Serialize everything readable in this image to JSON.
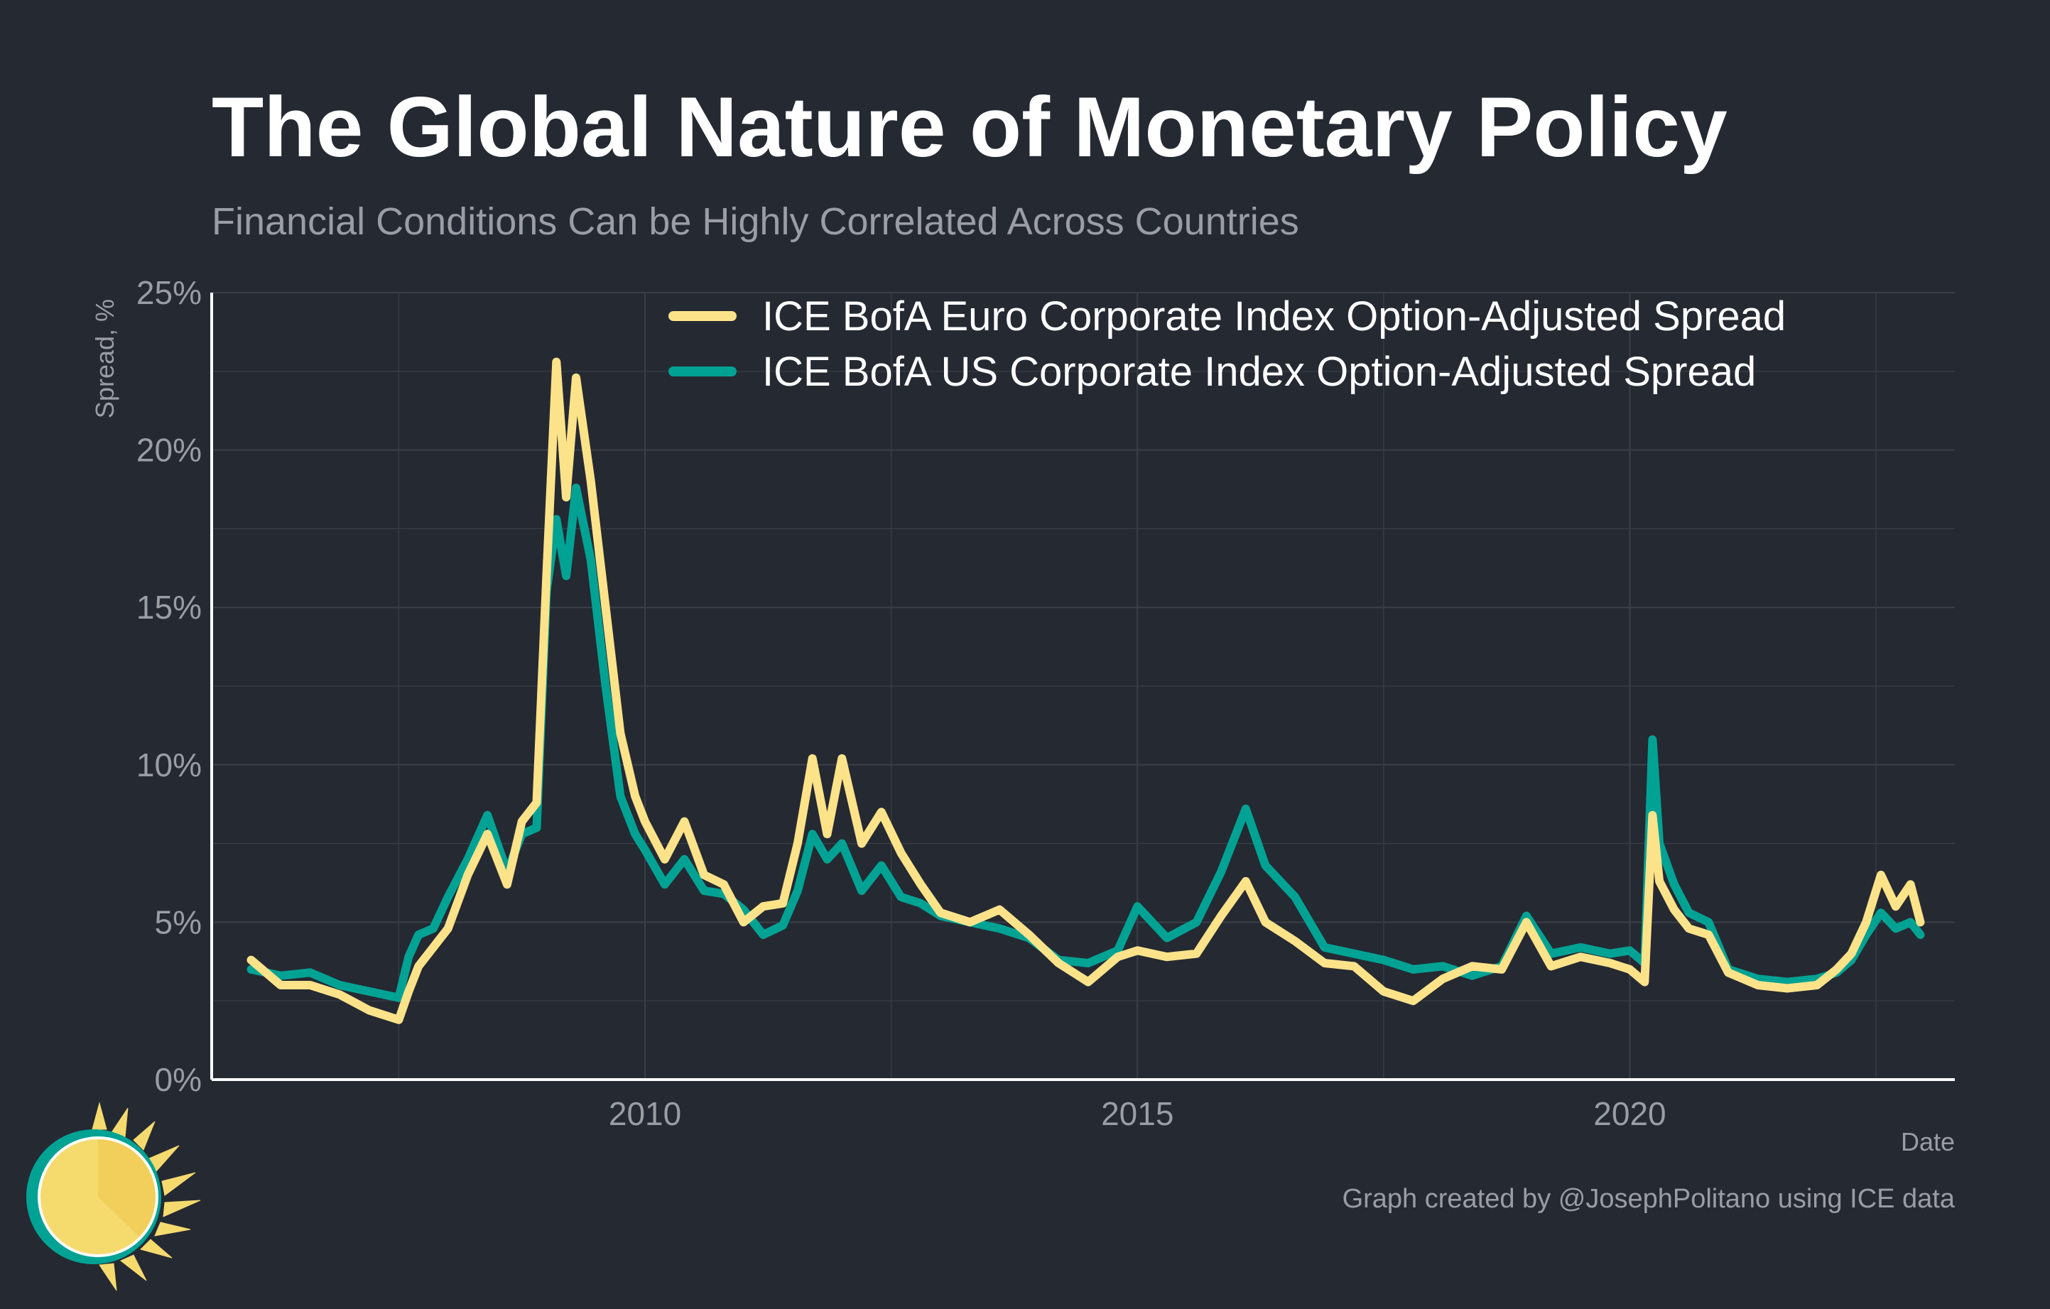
{
  "title": "The Global Nature of Monetary Policy",
  "subtitle": "Financial Conditions Can be Highly Correlated Across Countries",
  "caption": "Graph created by @JosephPolitano using ICE data",
  "logo_icon": "sun-logo-icon",
  "colors": {
    "background": "#252932",
    "grid": "#3b3f48",
    "axis": "#ffffff",
    "euro": "#fce38a",
    "us": "#00a294",
    "sun": "#f5da6e",
    "sun_ring": "#00a294"
  },
  "chart_data": {
    "type": "line",
    "title": "The Global Nature of Monetary Policy",
    "subtitle": "Financial Conditions Can be Highly Correlated Across Countries",
    "xlabel": "Date",
    "ylabel": "Spread, %",
    "xlim": [
      2005.6,
      2023.3
    ],
    "ylim": [
      0,
      25
    ],
    "x_ticks": [
      2010,
      2015,
      2020
    ],
    "x_tick_labels": [
      "2010",
      "2015",
      "2020"
    ],
    "y_ticks": [
      0,
      5,
      10,
      15,
      20,
      25
    ],
    "y_tick_labels": [
      "0%",
      "5%",
      "10%",
      "15%",
      "20%",
      "25%"
    ],
    "grid": true,
    "legend_position": "top-right",
    "series": [
      {
        "name": "ICE BofA Euro Corporate Index Option-Adjusted Spread",
        "color": "#fce38a",
        "x": [
          2006.0,
          2006.3,
          2006.6,
          2006.9,
          2007.2,
          2007.5,
          2007.6,
          2007.7,
          2007.85,
          2008.0,
          2008.2,
          2008.4,
          2008.6,
          2008.75,
          2008.9,
          2009.0,
          2009.1,
          2009.2,
          2009.3,
          2009.45,
          2009.6,
          2009.75,
          2009.9,
          2010.0,
          2010.2,
          2010.4,
          2010.6,
          2010.8,
          2011.0,
          2011.2,
          2011.4,
          2011.55,
          2011.7,
          2011.85,
          2012.0,
          2012.2,
          2012.4,
          2012.6,
          2012.8,
          2013.0,
          2013.3,
          2013.6,
          2013.9,
          2014.2,
          2014.5,
          2014.8,
          2015.0,
          2015.3,
          2015.6,
          2015.85,
          2016.1,
          2016.3,
          2016.6,
          2016.9,
          2017.2,
          2017.5,
          2017.8,
          2018.1,
          2018.4,
          2018.7,
          2018.95,
          2019.2,
          2019.5,
          2019.8,
          2020.0,
          2020.15,
          2020.23,
          2020.3,
          2020.45,
          2020.6,
          2020.8,
          2021.0,
          2021.3,
          2021.6,
          2021.9,
          2022.1,
          2022.25,
          2022.4,
          2022.55,
          2022.7,
          2022.85,
          2022.95
        ],
        "values": [
          3.8,
          3.0,
          3.0,
          2.7,
          2.2,
          1.9,
          2.8,
          3.6,
          4.2,
          4.8,
          6.5,
          7.8,
          6.2,
          8.2,
          8.8,
          16.0,
          22.8,
          18.5,
          22.3,
          19.0,
          15.0,
          11.0,
          9.0,
          8.2,
          7.0,
          8.2,
          6.5,
          6.2,
          5.0,
          5.5,
          5.6,
          7.5,
          10.2,
          7.8,
          10.2,
          7.5,
          8.5,
          7.2,
          6.2,
          5.3,
          5.0,
          5.4,
          4.6,
          3.7,
          3.1,
          3.9,
          4.1,
          3.9,
          4.0,
          5.2,
          6.3,
          5.0,
          4.4,
          3.7,
          3.6,
          2.8,
          2.5,
          3.2,
          3.6,
          3.5,
          5.0,
          3.6,
          3.9,
          3.7,
          3.5,
          3.1,
          8.4,
          6.3,
          5.4,
          4.8,
          4.6,
          3.4,
          3.0,
          2.9,
          3.0,
          3.5,
          4.0,
          5.0,
          6.5,
          5.5,
          6.2,
          5.0
        ]
      },
      {
        "name": "ICE BofA US Corporate Index Option-Adjusted Spread",
        "color": "#00a294",
        "x": [
          2006.0,
          2006.3,
          2006.6,
          2006.9,
          2007.2,
          2007.5,
          2007.6,
          2007.7,
          2007.85,
          2008.0,
          2008.2,
          2008.4,
          2008.6,
          2008.75,
          2008.9,
          2009.0,
          2009.1,
          2009.2,
          2009.3,
          2009.45,
          2009.6,
          2009.75,
          2009.9,
          2010.0,
          2010.2,
          2010.4,
          2010.6,
          2010.8,
          2011.0,
          2011.2,
          2011.4,
          2011.55,
          2011.7,
          2011.85,
          2012.0,
          2012.2,
          2012.4,
          2012.6,
          2012.8,
          2013.0,
          2013.3,
          2013.6,
          2013.9,
          2014.2,
          2014.5,
          2014.8,
          2015.0,
          2015.3,
          2015.6,
          2015.85,
          2016.1,
          2016.3,
          2016.6,
          2016.9,
          2017.2,
          2017.5,
          2017.8,
          2018.1,
          2018.4,
          2018.7,
          2018.95,
          2019.2,
          2019.5,
          2019.8,
          2020.0,
          2020.15,
          2020.23,
          2020.3,
          2020.45,
          2020.6,
          2020.8,
          2021.0,
          2021.3,
          2021.6,
          2021.9,
          2022.1,
          2022.25,
          2022.4,
          2022.55,
          2022.7,
          2022.85,
          2022.95
        ],
        "values": [
          3.5,
          3.3,
          3.4,
          3.0,
          2.8,
          2.6,
          3.9,
          4.6,
          4.8,
          5.8,
          7.0,
          8.4,
          6.6,
          7.8,
          8.0,
          15.5,
          17.8,
          16.0,
          18.8,
          16.5,
          12.5,
          9.0,
          7.8,
          7.3,
          6.2,
          7.0,
          6.0,
          5.9,
          5.4,
          4.6,
          4.9,
          6.0,
          7.8,
          7.0,
          7.5,
          6.0,
          6.8,
          5.8,
          5.6,
          5.2,
          5.0,
          4.8,
          4.5,
          3.8,
          3.7,
          4.1,
          5.5,
          4.5,
          5.0,
          6.6,
          8.6,
          6.8,
          5.8,
          4.2,
          4.0,
          3.8,
          3.5,
          3.6,
          3.3,
          3.6,
          5.2,
          4.0,
          4.2,
          4.0,
          4.1,
          3.7,
          10.8,
          7.5,
          6.2,
          5.3,
          5.0,
          3.5,
          3.2,
          3.1,
          3.2,
          3.4,
          3.8,
          4.6,
          5.3,
          4.8,
          5.0,
          4.6
        ]
      }
    ]
  }
}
